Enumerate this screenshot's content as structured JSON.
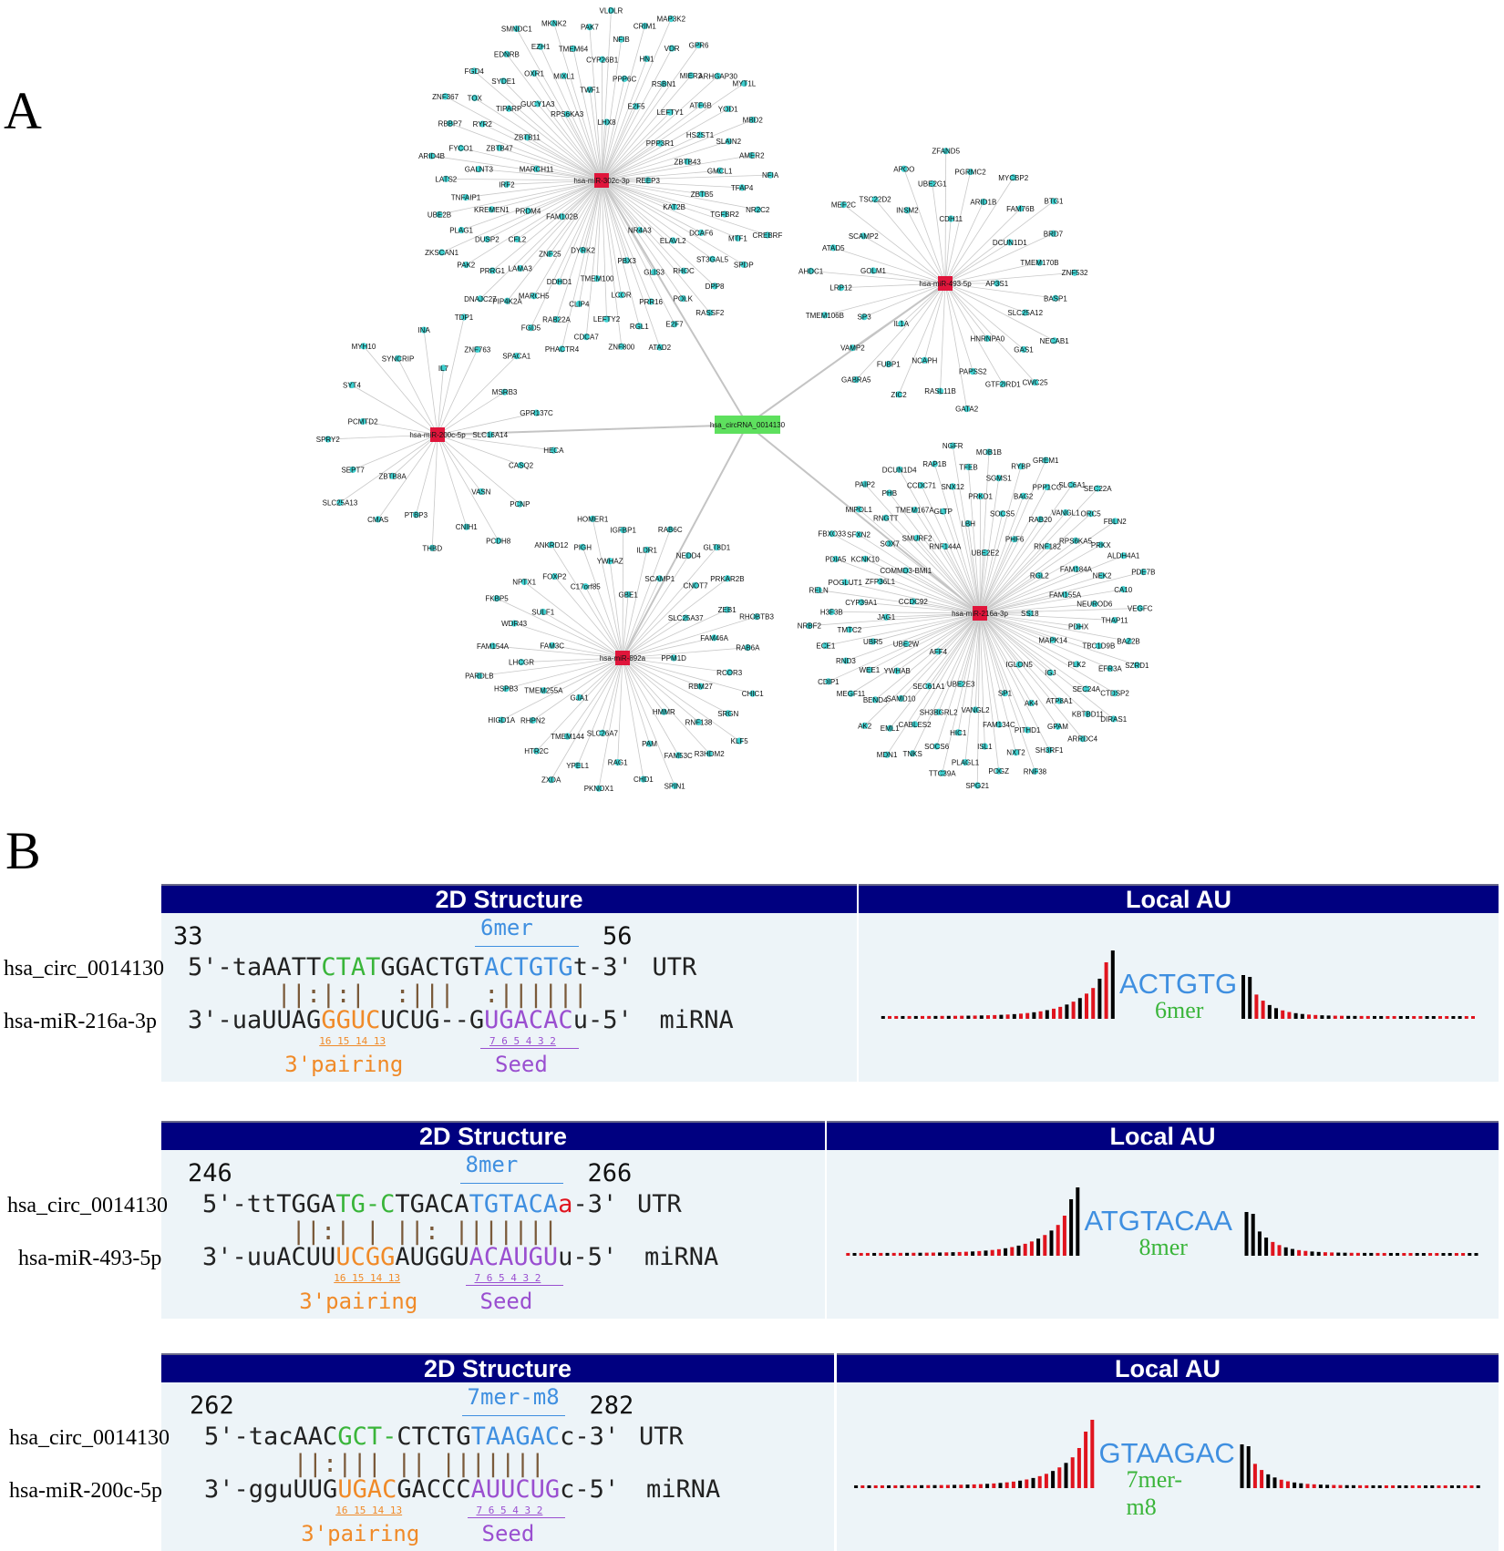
{
  "panels": {
    "a": "A",
    "b": "B"
  },
  "network": {
    "circ": "hsa_circRNA_0014130",
    "hubs": [
      {
        "label": "hsa-miR-302c-3p",
        "targets": [
          "REEP3",
          "FAM102B",
          "LHX8",
          "NR4A3",
          "MARCH11",
          "PPP3R1",
          "DYRK2",
          "RPS6KA3",
          "KAT2B",
          "PRDM4",
          "E2F5",
          "PBX3",
          "ZBTB11",
          "ZBTB43",
          "ZNF25",
          "TWF1",
          "ELAVL2",
          "IRF2",
          "LEFTY1",
          "TMEM100",
          "GUCY1A3",
          "ZBTB5",
          "CFL2",
          "PPP6C",
          "GLIS3",
          "ZBTB47",
          "HS2ST1",
          "DDHD1",
          "MIXL1",
          "DCAF6",
          "KREMEN1",
          "RSBN1",
          "LCOR",
          "TIPARP",
          "GMCL1",
          "LAMA3",
          "CYP26B1",
          "RHOC",
          "GALNT3",
          "ATF6B",
          "CLIP4",
          "OXR1",
          "TGFBR2",
          "DUSP2",
          "HN1",
          "PRR16",
          "RYR2",
          "SLAIN2",
          "MARCH5",
          "TMEM64",
          "ST3GAL5",
          "TNFAIP1",
          "MIER3",
          "LEFTY2",
          "SYDE1",
          "TFAP4",
          "PRRG1",
          "NFIB",
          "POLK",
          "FYCO1",
          "YOD1",
          "RAB22A",
          "EZH1",
          "MTF1",
          "PLAG1",
          "VDR",
          "RGL1",
          "TOX",
          "AMER2",
          "PIP4K2A",
          "PAK7",
          "DPP8",
          "LATS2",
          "ARHGAP30",
          "CDCA7",
          "EDNRB",
          "NR2C2",
          "PAK2",
          "CRIM1",
          "E2F7",
          "RBBP7",
          "MBD2",
          "FGD5",
          "MKNK2",
          "SPDP",
          "UBE2B",
          "GPR6",
          "ZNF800",
          "FGD4",
          "NFIA",
          "DNAJC27",
          "VLDLR",
          "RASSF2",
          "ARID4B",
          "MYT1L",
          "PHACTR4",
          "SMNDC1",
          "CREBRF",
          "ZKSCAN1",
          "MAP3K2",
          "ATAD2",
          "ZNF367"
        ]
      },
      {
        "label": "hsa-miR-493-5p",
        "targets": [
          "AP3S1",
          "IL1A",
          "CDH11",
          "HNRNPA0",
          "GOLM1",
          "DCUN1D1",
          "NCAPH",
          "INSM2",
          "SLC25A12",
          "SP3",
          "ARID1B",
          "PAPSS2",
          "SCAMP2",
          "TMEM170B",
          "FUBP1",
          "UBE2G1",
          "GAS1",
          "LRP12",
          "FAM76B",
          "RASL11B",
          "TSC22D2",
          "BASP1",
          "VAMP2",
          "PGRMC2",
          "GTF2IRD1",
          "ATAD5",
          "BRD7",
          "ZIC2",
          "APOO",
          "NECAB1",
          "TMEM106B",
          "MYCBP2",
          "GATA2",
          "MEF2C",
          "ZNF532",
          "GABRA5",
          "ZFAND5",
          "CWC25",
          "AHDC1",
          "BTG1"
        ]
      },
      {
        "label": "hsa-miR-200c-5p",
        "targets": [
          "SLC16A14",
          "ZBTB8A",
          "IL7",
          "VASN",
          "PCMTD2",
          "MSRB3",
          "PTBP3",
          "SYNCRIP",
          "CASQ2",
          "SEPT7",
          "ZNF763",
          "CNIH1",
          "SYT4",
          "GPR137C",
          "CMAS",
          "INA",
          "PCNP",
          "SPRY2",
          "SPACA1",
          "THBD",
          "MYH10",
          "HECA",
          "SLC25A13",
          "TDP1",
          "PCDH8"
        ]
      },
      {
        "label": "hsa-miR-892a",
        "targets": [
          "PPM1D",
          "GJA1",
          "GBE1",
          "HMMR",
          "FAM3C",
          "SLC25A37",
          "SLC26A7",
          "C17orf85",
          "RBM27",
          "TMEM255A",
          "SCAMP1",
          "PAM",
          "SULF1",
          "FAM46A",
          "TMEM144",
          "YWHAZ",
          "RNF138",
          "LHCGR",
          "CNOT7",
          "RAG1",
          "FOXP2",
          "RCOR3",
          "RHPN2",
          "ILDR1",
          "FAM53C",
          "WDR43",
          "ZEB1",
          "YPEL1",
          "PIGH",
          "SRGN",
          "HSPB3",
          "NEDD4",
          "CHD1",
          "NPTX1",
          "RAB6A",
          "HTR2C",
          "IGFBP1",
          "R3HDM2",
          "FAM154A",
          "PRKAR2B",
          "PKNOX1",
          "ANKRD12",
          "CHIC1",
          "HIGD1A",
          "RAB6C",
          "SPIN1",
          "FKBP5",
          "RHOBTB3",
          "ZXDA",
          "HOMER1",
          "KLF5",
          "PARDLB",
          "GLT8D1"
        ]
      },
      {
        "label": "hsa-miR-216a-3p",
        "targets": [
          "SS18",
          "AFF4",
          "UBE2E2",
          "IGLON5",
          "CCDC92",
          "RGL2",
          "UBE2E3",
          "RNF144A",
          "MAPK14",
          "UBE2W",
          "PHF6",
          "SP1",
          "COMMD3-BMI1",
          "FAM155A",
          "SEC61A1",
          "LBH",
          "IGJ",
          "JAG1",
          "RNF182",
          "VANGL2",
          "SMURF2",
          "PDHX",
          "YWHAB",
          "SOCS5",
          "AK4",
          "ZFP36L1",
          "FAM184A",
          "SH3BGRL2",
          "GLTP",
          "PLK2",
          "UBR5",
          "RAB20",
          "FAM134C",
          "SOX7",
          "NEUROD6",
          "SAMD10",
          "PRKD1",
          "ATP8A1",
          "CYP39A1",
          "RPS6KA5",
          "HIC1",
          "TMEM167A",
          "TBC1D9B",
          "WEE1",
          "BAG2",
          "PITHD1",
          "KCNK10",
          "NEK2",
          "CABLES2",
          "SNX12",
          "SEC24A",
          "TMTC2",
          "VANGL1",
          "ISL1",
          "RNGTT",
          "THAP11",
          "BEND4",
          "SGMS1",
          "GPAM",
          "POGLUT1",
          "PRKX",
          "SOCS6",
          "CCDC71",
          "EFR3A",
          "RND3",
          "PPP1CC",
          "NXT2",
          "SFXN2",
          "CA10",
          "EML1",
          "TFEB",
          "KBTBD11",
          "H3F3B",
          "ORC5",
          "PLAGL1",
          "PHB",
          "BAZ2B",
          "MEGF11",
          "RYBP",
          "SH3RF1",
          "PDIA5",
          "ALDH4A1",
          "TNKS",
          "RAP1B",
          "CTDSP2",
          "ECE1",
          "SLC6A1",
          "POGZ",
          "MIPOL1",
          "VEGFC",
          "AK2",
          "MOB1B",
          "ARRDC4",
          "RELN",
          "FBLN2",
          "TTC39A",
          "DCUN1D4",
          "SZRD1",
          "CDIP1",
          "GREM1",
          "RNF38",
          "FBXO33",
          "PDE7B",
          "MDN1",
          "NGFR",
          "DIRAS1",
          "NRBF2",
          "SEC22A",
          "SPG21",
          "PAIP2"
        ]
      }
    ]
  },
  "blocks": [
    {
      "header_left": "2D Structure",
      "header_right": "Local AU",
      "start": "33",
      "end": "56",
      "site_type": "6mer",
      "circ_name": "hsa_circ_0014130",
      "mir_name": "hsa-miR-216a-3p",
      "utr_prefix": "5'-taAATT",
      "utr_green": "CTAT",
      "utr_mid": "GGACTGT",
      "utr_blue": "ACTGTG",
      "utr_tail_red": "",
      "utr_tail": "t-3'",
      "pairs": " ||:|:|  :|||  :||||||",
      "mir_prefix": "3'-uaUUAG",
      "mir_orange": "GGUC",
      "mir_mid": "UCUG--G",
      "mir_purple": "UGACAC",
      "mir_tail": "u-5'",
      "utr_label": "UTR",
      "mir_label": "miRNA",
      "pos3": "16 15 14 13",
      "posseed": "7 6 5 4 3 2",
      "pairing": "3'pairing",
      "seed": "Seed",
      "au_seq": "ACTGTG",
      "au_type": "6mer"
    },
    {
      "header_left": "2D Structure",
      "header_right": "Local AU",
      "start": "246",
      "end": "266",
      "site_type": "8mer",
      "circ_name": "hsa_circ_0014130",
      "mir_name": "hsa-miR-493-5p",
      "utr_prefix": "5'-ttTGGA",
      "utr_green": "TG-C",
      "utr_mid": "TGACA",
      "utr_blue": "TGTACA",
      "utr_tail_red": "a",
      "utr_tail": "-3'",
      "pairs": " ||:| | ||: |||||||",
      "mir_prefix": "3'-uuACUU",
      "mir_orange": "UCGG",
      "mir_mid": "AUGGU",
      "mir_purple": "ACAUGU",
      "mir_tail": "u-5'",
      "utr_label": "UTR",
      "mir_label": "miRNA",
      "pos3": "16 15 14 13",
      "posseed": "7 6 5 4 3 2",
      "pairing": "3'pairing",
      "seed": "Seed",
      "au_seq": "ATGTACAA",
      "au_type": "8mer"
    },
    {
      "header_left": "2D Structure",
      "header_right": "Local AU",
      "start": "262",
      "end": "282",
      "site_type": "7mer-m8",
      "circ_name": "hsa_circ_0014130",
      "mir_name": "hsa-miR-200c-5p",
      "utr_prefix": "5'-tacAAC",
      "utr_green": "GCT-",
      "utr_mid": "CTCTG",
      "utr_blue": "TAAGAC",
      "utr_tail_red": "",
      "utr_tail": "c-3'",
      "pairs": " ||:||| || |||||||",
      "mir_prefix": "3'-gguUUG",
      "mir_orange": "UGAC",
      "mir_mid": "GACCC",
      "mir_purple": "AUUCUG",
      "mir_tail": "c-5'",
      "utr_label": "UTR",
      "mir_label": "miRNA",
      "pos3": "16 15 14 13",
      "posseed": "7 6 5 4 3 2",
      "pairing": "3'pairing",
      "seed": "Seed",
      "au_seq": "GTAAGAC",
      "au_type": "7mer-m8"
    }
  ],
  "colors": {
    "header": "#000080",
    "pane": "#edf4f8",
    "mirna": "#e0153b",
    "circ": "#5ee05e",
    "target": "#3fd0d0",
    "au_red": "#e0141e",
    "au_black": "#000000"
  }
}
